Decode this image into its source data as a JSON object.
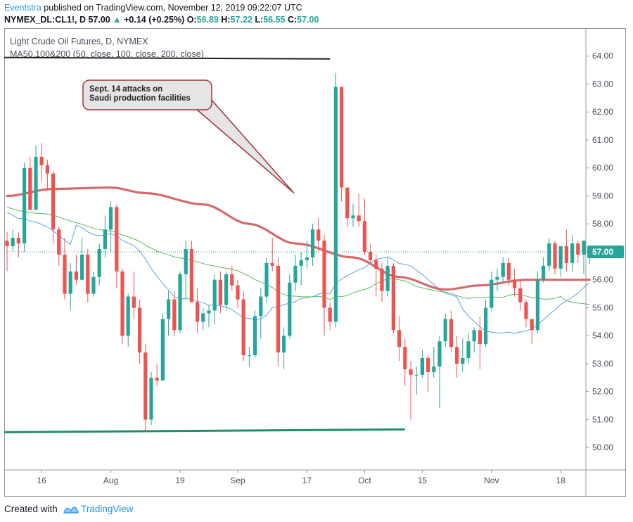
{
  "header": {
    "author": "Eventstra",
    "published": "published on TradingView.com, November 12, 2019 09:22:07 UTC",
    "symbol": "NYMEX_DL:CL1!, D",
    "price": "57.00",
    "change_arrow": "▲",
    "change": "+0.14 (+0.25%)",
    "o_label": "O:",
    "o_val": "56.89",
    "h_label": "H:",
    "h_val": "57.22",
    "l_label": "L:",
    "l_val": "56.55",
    "c_label": "C:",
    "c_val": "57.00"
  },
  "footer": {
    "created": "Created with",
    "brand": "TradingView"
  },
  "colors": {
    "up": "#26a69a",
    "down": "#ef5350",
    "ma50": "#5ba3e0",
    "ma100": "#5cb85c",
    "ma200": "#d46b6b",
    "support": "#1f8f6a",
    "resistance": "#222222"
  },
  "chart_data": {
    "type": "candlestick",
    "title": "Light Crude Oil Futures, D, NYMEX",
    "indicator_label": "MA50.100&200 (50, close, 100, close, 200, close)",
    "ylim": [
      49.2,
      65.0
    ],
    "y_ticks": [
      "50.00",
      "51.00",
      "52.00",
      "53.00",
      "54.00",
      "55.00",
      "56.00",
      "57.00",
      "58.00",
      "59.00",
      "60.00",
      "61.00",
      "62.00",
      "63.00",
      "64.00"
    ],
    "x_ticks": [
      {
        "label": "16",
        "index": 6
      },
      {
        "label": "Aug",
        "index": 18
      },
      {
        "label": "19",
        "index": 30
      },
      {
        "label": "Sep",
        "index": 40
      },
      {
        "label": "17",
        "index": 52
      },
      {
        "label": "Oct",
        "index": 62
      },
      {
        "label": "15",
        "index": 72
      },
      {
        "label": "Nov",
        "index": 84
      },
      {
        "label": "18",
        "index": 96
      }
    ],
    "last_price": "57.00",
    "annotation": {
      "text": [
        "Sept. 14 attacks on",
        "Saudi production facilities"
      ],
      "points_to": [
        50,
        59.0
      ]
    },
    "resistance_line": {
      "from": [
        -1,
        63.95
      ],
      "to": [
        56,
        63.9
      ]
    },
    "support_line": {
      "from": [
        -1,
        50.55
      ],
      "to": [
        69,
        50.65
      ]
    },
    "candles": [
      [
        57.4,
        57.7,
        56.3,
        57.2
      ],
      [
        57.2,
        57.8,
        57.0,
        57.5
      ],
      [
        57.5,
        57.7,
        56.8,
        57.3
      ],
      [
        57.3,
        60.2,
        57.0,
        60.0
      ],
      [
        60.0,
        60.4,
        58.5,
        58.5
      ],
      [
        58.5,
        60.8,
        58.5,
        60.4
      ],
      [
        60.4,
        60.9,
        59.5,
        60.1
      ],
      [
        60.1,
        60.3,
        59.2,
        59.8
      ],
      [
        59.8,
        59.9,
        57.3,
        57.8
      ],
      [
        57.8,
        57.9,
        56.5,
        56.9
      ],
      [
        56.9,
        57.5,
        55.3,
        55.5
      ],
      [
        55.5,
        56.6,
        54.9,
        56.3
      ],
      [
        56.3,
        56.9,
        55.8,
        56.0
      ],
      [
        56.0,
        57.5,
        56.0,
        56.9
      ],
      [
        56.9,
        57.1,
        55.2,
        55.5
      ],
      [
        55.5,
        56.3,
        55.4,
        56.1
      ],
      [
        56.1,
        57.3,
        55.8,
        57.1
      ],
      [
        57.1,
        58.3,
        56.8,
        57.8
      ],
      [
        57.8,
        58.8,
        57.0,
        58.6
      ],
      [
        58.6,
        58.7,
        55.7,
        56.3
      ],
      [
        56.3,
        56.4,
        53.7,
        54.0
      ],
      [
        54.0,
        55.5,
        53.6,
        55.4
      ],
      [
        55.4,
        56.3,
        54.6,
        55.0
      ],
      [
        55.0,
        55.3,
        53.0,
        53.4
      ],
      [
        53.4,
        53.7,
        50.6,
        51.0
      ],
      [
        51.0,
        52.7,
        50.8,
        52.5
      ],
      [
        52.5,
        53.0,
        52.2,
        52.4
      ],
      [
        52.4,
        54.8,
        52.4,
        54.6
      ],
      [
        54.6,
        55.6,
        54.0,
        55.3
      ],
      [
        55.3,
        55.6,
        54.0,
        54.2
      ],
      [
        54.2,
        56.3,
        54.1,
        56.2
      ],
      [
        56.2,
        57.4,
        55.3,
        57.1
      ],
      [
        57.1,
        57.4,
        55.2,
        55.2
      ],
      [
        55.2,
        55.7,
        54.1,
        54.5
      ],
      [
        54.5,
        55.0,
        54.2,
        54.8
      ],
      [
        54.8,
        55.1,
        54.3,
        54.9
      ],
      [
        54.9,
        56.2,
        54.4,
        56.0
      ],
      [
        56.0,
        56.3,
        54.8,
        55.1
      ],
      [
        55.1,
        56.3,
        54.9,
        56.2
      ],
      [
        56.2,
        56.5,
        55.6,
        55.8
      ],
      [
        55.8,
        56.0,
        55.0,
        55.3
      ],
      [
        55.3,
        55.6,
        53.1,
        53.3
      ],
      [
        53.3,
        53.6,
        52.9,
        53.3
      ],
      [
        53.3,
        54.9,
        53.2,
        54.7
      ],
      [
        54.7,
        55.7,
        53.9,
        55.4
      ],
      [
        55.4,
        56.8,
        55.2,
        56.6
      ],
      [
        56.6,
        57.5,
        56.3,
        56.5
      ],
      [
        56.5,
        56.8,
        52.9,
        53.4
      ],
      [
        53.4,
        54.3,
        52.8,
        54.0
      ],
      [
        54.0,
        56.2,
        53.9,
        55.9
      ],
      [
        55.9,
        56.9,
        55.6,
        56.5
      ],
      [
        56.5,
        57.0,
        55.8,
        56.7
      ],
      [
        56.7,
        57.4,
        56.4,
        56.8
      ],
      [
        56.8,
        58.0,
        56.5,
        57.8
      ],
      [
        57.8,
        58.2,
        57.0,
        57.4
      ],
      [
        57.4,
        57.6,
        54.0,
        55.0
      ],
      [
        55.0,
        55.2,
        54.2,
        54.5
      ],
      [
        54.5,
        63.4,
        54.3,
        62.9
      ],
      [
        62.9,
        62.9,
        58.8,
        59.3
      ],
      [
        59.3,
        59.3,
        57.9,
        58.2
      ],
      [
        58.2,
        58.7,
        57.9,
        58.3
      ],
      [
        58.3,
        59.1,
        57.9,
        58.1
      ],
      [
        58.1,
        58.9,
        56.9,
        57.0
      ],
      [
        57.0,
        57.3,
        56.6,
        56.7
      ],
      [
        56.7,
        56.9,
        55.4,
        56.4
      ],
      [
        56.4,
        56.6,
        55.2,
        55.6
      ],
      [
        55.6,
        56.8,
        55.4,
        56.5
      ],
      [
        56.5,
        56.6,
        54.1,
        54.2
      ],
      [
        54.2,
        54.7,
        53.1,
        53.6
      ],
      [
        53.6,
        53.9,
        52.2,
        52.8
      ],
      [
        52.8,
        53.1,
        51.0,
        52.6
      ],
      [
        52.6,
        52.9,
        51.9,
        52.6
      ],
      [
        52.6,
        53.5,
        52.5,
        53.2
      ],
      [
        53.2,
        53.3,
        52.0,
        52.7
      ],
      [
        52.7,
        53.6,
        52.5,
        52.9
      ],
      [
        52.9,
        54.0,
        51.4,
        53.8
      ],
      [
        53.8,
        54.8,
        53.6,
        54.6
      ],
      [
        54.6,
        54.9,
        53.4,
        53.6
      ],
      [
        53.6,
        54.0,
        52.5,
        53.0
      ],
      [
        53.0,
        53.9,
        52.7,
        53.2
      ],
      [
        53.2,
        54.1,
        53.0,
        53.8
      ],
      [
        53.8,
        54.3,
        53.4,
        54.2
      ],
      [
        54.2,
        54.7,
        52.8,
        53.7
      ],
      [
        53.7,
        55.3,
        53.6,
        55.0
      ],
      [
        55.0,
        56.3,
        54.9,
        56.0
      ],
      [
        56.0,
        56.4,
        55.6,
        56.1
      ],
      [
        56.1,
        56.8,
        55.9,
        56.6
      ],
      [
        56.6,
        56.8,
        55.8,
        56.0
      ],
      [
        56.0,
        56.4,
        55.4,
        55.7
      ],
      [
        55.7,
        56.0,
        54.9,
        55.2
      ],
      [
        55.2,
        55.3,
        54.3,
        54.6
      ],
      [
        54.6,
        54.6,
        53.7,
        54.2
      ],
      [
        54.2,
        56.3,
        54.1,
        56.0
      ],
      [
        56.0,
        56.8,
        55.9,
        56.5
      ],
      [
        56.5,
        57.5,
        56.3,
        57.3
      ],
      [
        57.3,
        57.4,
        56.2,
        56.4
      ],
      [
        56.4,
        57.2,
        56.1,
        57.2
      ],
      [
        57.2,
        57.8,
        56.3,
        56.6
      ],
      [
        56.6,
        57.6,
        56.3,
        57.3
      ],
      [
        57.3,
        57.4,
        56.6,
        56.9
      ],
      [
        56.9,
        57.4,
        56.2,
        57.4
      ],
      [
        56.89,
        57.22,
        56.55,
        57.0
      ]
    ]
  }
}
